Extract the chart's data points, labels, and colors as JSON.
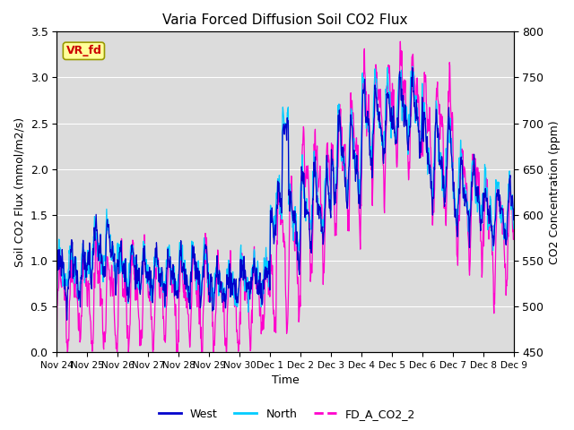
{
  "title": "Varia Forced Diffusion Soil CO2 Flux",
  "xlabel": "Time",
  "ylabel_left": "Soil CO2 Flux (mmol/m2/s)",
  "ylabel_right": "CO2 Concentration (ppm)",
  "ylim_left": [
    0.0,
    3.5
  ],
  "ylim_right": [
    450,
    800
  ],
  "yticks_left": [
    0.0,
    0.5,
    1.0,
    1.5,
    2.0,
    2.5,
    3.0,
    3.5
  ],
  "yticks_right": [
    450,
    500,
    550,
    600,
    650,
    700,
    750,
    800
  ],
  "xtick_labels": [
    "Nov 24",
    "Nov 25",
    "Nov 26",
    "Nov 27",
    "Nov 28",
    "Nov 29",
    "Nov 30",
    "Dec 1",
    "Dec 2",
    "Dec 3",
    "Dec 4",
    "Dec 5",
    "Dec 6",
    "Dec 7",
    "Dec 8",
    "Dec 9"
  ],
  "color_west": "#0000CC",
  "color_north": "#00CCFF",
  "color_co2": "#FF00CC",
  "label_west": "West",
  "label_north": "North",
  "label_co2": "FD_A_CO2_2",
  "annotation_text": "VR_fd",
  "annotation_color": "#CC0000",
  "annotation_bg": "#FFFF99",
  "background_color": "#DCDCDC",
  "linewidth": 0.9,
  "legend_linewidth": 2.0,
  "figsize": [
    6.4,
    4.8
  ],
  "dpi": 100
}
